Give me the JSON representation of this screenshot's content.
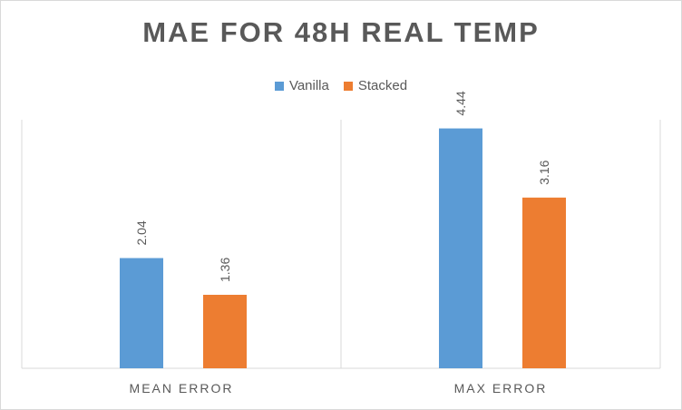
{
  "chart_data": {
    "type": "bar",
    "title": "MAE FOR 48H REAL TEMP",
    "categories": [
      "MEAN ERROR",
      "MAX ERROR"
    ],
    "series": [
      {
        "name": "Vanilla",
        "color": "#5b9bd5",
        "values": [
          2.04,
          4.44
        ]
      },
      {
        "name": "Stacked",
        "color": "#ed7d31",
        "values": [
          1.36,
          3.16
        ]
      }
    ],
    "ylim": [
      0,
      4.5
    ],
    "grid": false,
    "legend": "top-center",
    "data_labels": true
  }
}
